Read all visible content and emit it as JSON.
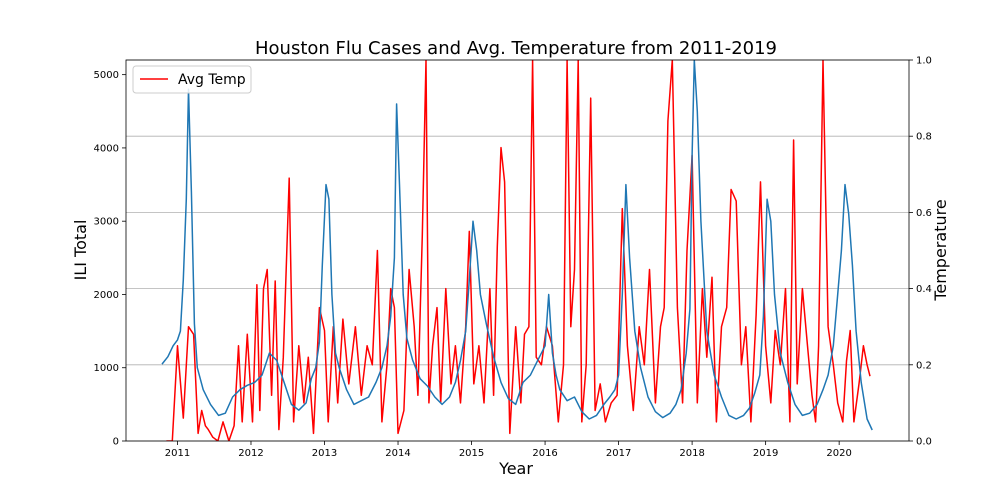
{
  "chart_data": {
    "type": "line",
    "title": "Houston Flu Cases and Avg. Temperature from 2011-2019",
    "xlabel": "Year",
    "ylabel": "ILI Total",
    "y2label": "Temperature",
    "xlim": [
      2010.3,
      2020.95
    ],
    "ylim": [
      0,
      5200
    ],
    "y2lim": [
      0,
      1.0
    ],
    "xticks": [
      "2011",
      "2012",
      "2013",
      "2014",
      "2015",
      "2016",
      "2017",
      "2018",
      "2019",
      "2020"
    ],
    "yticks": [
      "0",
      "1000",
      "2000",
      "3000",
      "4000",
      "5000"
    ],
    "y2ticks": [
      "0.0",
      "0.2",
      "0.4",
      "0.6",
      "0.8",
      "1.0"
    ],
    "grid": "horizontal on secondary axis",
    "legend": {
      "placement": "top-left",
      "entries": [
        "Avg Temp"
      ]
    },
    "series": [
      {
        "axis": "left",
        "color": "#1f77b4",
        "x": [
          2010.79,
          2010.87,
          2010.94,
          2011.0,
          2011.04,
          2011.08,
          2011.12,
          2011.15,
          2011.19,
          2011.23,
          2011.27,
          2011.35,
          2011.45,
          2011.56,
          2011.65,
          2011.75,
          2011.85,
          2011.95,
          2012.05,
          2012.15,
          2012.25,
          2012.35,
          2012.45,
          2012.55,
          2012.65,
          2012.75,
          2012.82,
          2012.88,
          2012.93,
          2012.97,
          2013.02,
          2013.06,
          2013.1,
          2013.15,
          2013.2,
          2013.3,
          2013.4,
          2013.5,
          2013.6,
          2013.7,
          2013.78,
          2013.85,
          2013.9,
          2013.95,
          2013.98,
          2014.02,
          2014.07,
          2014.12,
          2014.2,
          2014.3,
          2014.4,
          2014.5,
          2014.6,
          2014.7,
          2014.78,
          2014.85,
          2014.92,
          2014.97,
          2015.02,
          2015.07,
          2015.12,
          2015.2,
          2015.3,
          2015.4,
          2015.5,
          2015.6,
          2015.7,
          2015.8,
          2015.9,
          2016.0,
          2016.05,
          2016.1,
          2016.15,
          2016.2,
          2016.3,
          2016.4,
          2016.5,
          2016.6,
          2016.7,
          2016.8,
          2016.88,
          2016.95,
          2017.0,
          2017.05,
          2017.1,
          2017.15,
          2017.22,
          2017.3,
          2017.4,
          2017.5,
          2017.6,
          2017.7,
          2017.78,
          2017.85,
          2017.92,
          2017.97,
          2018.0,
          2018.03,
          2018.07,
          2018.12,
          2018.2,
          2018.3,
          2018.4,
          2018.5,
          2018.6,
          2018.7,
          2018.78,
          2018.85,
          2018.92,
          2018.97,
          2019.02,
          2019.07,
          2019.12,
          2019.2,
          2019.3,
          2019.4,
          2019.5,
          2019.6,
          2019.7,
          2019.78,
          2019.85,
          2019.92,
          2019.98,
          2020.03,
          2020.08,
          2020.13,
          2020.18,
          2020.23,
          2020.3,
          2020.38,
          2020.45
        ],
        "values": [
          1050,
          1150,
          1300,
          1380,
          1500,
          2200,
          3300,
          4800,
          3400,
          1600,
          1000,
          700,
          500,
          350,
          380,
          600,
          700,
          760,
          800,
          900,
          1200,
          1100,
          800,
          500,
          420,
          520,
          850,
          1000,
          1350,
          2400,
          3500,
          3300,
          2000,
          1200,
          1000,
          700,
          500,
          550,
          600,
          800,
          1000,
          1300,
          1700,
          2500,
          4600,
          3500,
          2000,
          1400,
          1100,
          850,
          750,
          600,
          500,
          600,
          800,
          1100,
          1500,
          2200,
          3000,
          2600,
          2000,
          1600,
          1150,
          800,
          580,
          500,
          800,
          900,
          1100,
          1300,
          2000,
          1200,
          900,
          700,
          550,
          600,
          400,
          300,
          350,
          500,
          600,
          700,
          900,
          2000,
          3500,
          2500,
          1500,
          1000,
          600,
          400,
          320,
          380,
          500,
          700,
          1200,
          1800,
          3900,
          5200,
          4500,
          3000,
          1500,
          900,
          600,
          350,
          300,
          350,
          450,
          650,
          900,
          1700,
          3300,
          3000,
          2000,
          1200,
          800,
          500,
          350,
          380,
          500,
          700,
          900,
          1300,
          2000,
          2600,
          3500,
          3100,
          2400,
          1500,
          800,
          300,
          150
        ]
      },
      {
        "name": "Avg Temp",
        "axis": "right",
        "color": "#ff0000",
        "x": [
          2010.85,
          2010.93,
          2011.0,
          2011.08,
          2011.15,
          2011.22,
          2011.28,
          2011.33,
          2011.38,
          2011.42,
          2011.48,
          2011.55,
          2011.62,
          2011.7,
          2011.77,
          2011.83,
          2011.88,
          2011.95,
          2012.02,
          2012.08,
          2012.12,
          2012.17,
          2012.22,
          2012.28,
          2012.33,
          2012.38,
          2012.44,
          2012.52,
          2012.58,
          2012.65,
          2012.72,
          2012.78,
          2012.85,
          2012.93,
          2013.0,
          2013.05,
          2013.12,
          2013.18,
          2013.25,
          2013.33,
          2013.42,
          2013.5,
          2013.58,
          2013.65,
          2013.72,
          2013.78,
          2013.85,
          2013.9,
          2013.95,
          2014.0,
          2014.08,
          2014.15,
          2014.22,
          2014.27,
          2014.33,
          2014.38,
          2014.42,
          2014.47,
          2014.53,
          2014.58,
          2014.65,
          2014.72,
          2014.78,
          2014.85,
          2014.92,
          2014.97,
          2015.03,
          2015.1,
          2015.17,
          2015.25,
          2015.3,
          2015.35,
          2015.4,
          2015.45,
          2015.52,
          2015.6,
          2015.67,
          2015.72,
          2015.78,
          2015.83,
          2015.88,
          2015.95,
          2016.02,
          2016.1,
          2016.18,
          2016.25,
          2016.3,
          2016.35,
          2016.4,
          2016.45,
          2016.5,
          2016.56,
          2016.62,
          2016.68,
          2016.75,
          2016.82,
          2016.9,
          2016.98,
          2017.05,
          2017.12,
          2017.2,
          2017.28,
          2017.35,
          2017.42,
          2017.5,
          2017.57,
          2017.62,
          2017.67,
          2017.73,
          2017.8,
          2017.87,
          2017.93,
          2018.0,
          2018.07,
          2018.14,
          2018.2,
          2018.27,
          2018.33,
          2018.4,
          2018.47,
          2018.53,
          2018.6,
          2018.67,
          2018.73,
          2018.8,
          2018.87,
          2018.93,
          2019.0,
          2019.07,
          2019.13,
          2019.2,
          2019.27,
          2019.33,
          2019.38,
          2019.43,
          2019.5,
          2019.57,
          2019.63,
          2019.68,
          2019.72,
          2019.78,
          2019.85,
          2019.92,
          2019.98,
          2020.05,
          2020.1,
          2020.15,
          2020.2,
          2020.27,
          2020.33,
          2020.38,
          2020.42
        ],
        "values": [
          0.0,
          0.0,
          0.25,
          0.06,
          0.3,
          0.28,
          0.02,
          0.08,
          0.04,
          0.03,
          0.01,
          0.0,
          0.05,
          0.0,
          0.04,
          0.25,
          0.05,
          0.28,
          0.05,
          0.41,
          0.08,
          0.4,
          0.45,
          0.12,
          0.42,
          0.03,
          0.22,
          0.69,
          0.05,
          0.25,
          0.1,
          0.22,
          0.02,
          0.35,
          0.29,
          0.05,
          0.3,
          0.1,
          0.32,
          0.15,
          0.3,
          0.12,
          0.25,
          0.2,
          0.5,
          0.05,
          0.2,
          0.4,
          0.35,
          0.02,
          0.08,
          0.45,
          0.3,
          0.12,
          0.54,
          1.0,
          0.1,
          0.25,
          0.35,
          0.1,
          0.4,
          0.15,
          0.25,
          0.1,
          0.3,
          0.55,
          0.15,
          0.25,
          0.1,
          0.4,
          0.12,
          0.51,
          0.77,
          0.68,
          0.02,
          0.3,
          0.1,
          0.28,
          0.3,
          1.0,
          0.22,
          0.2,
          0.3,
          0.25,
          0.05,
          0.2,
          1.0,
          0.3,
          0.45,
          1.0,
          0.05,
          0.2,
          0.9,
          0.08,
          0.15,
          0.05,
          0.1,
          0.12,
          0.61,
          0.25,
          0.08,
          0.3,
          0.2,
          0.45,
          0.1,
          0.3,
          0.35,
          0.84,
          1.0,
          0.35,
          0.1,
          0.5,
          0.75,
          0.1,
          0.4,
          0.22,
          0.43,
          0.05,
          0.3,
          0.35,
          0.66,
          0.63,
          0.2,
          0.3,
          0.05,
          0.33,
          0.68,
          0.25,
          0.1,
          0.29,
          0.2,
          0.4,
          0.05,
          0.79,
          0.15,
          0.4,
          0.25,
          0.12,
          0.05,
          0.25,
          1.0,
          0.3,
          0.2,
          0.1,
          0.05,
          0.21,
          0.29,
          0.05,
          0.15,
          0.25,
          0.2,
          0.17
        ]
      }
    ]
  }
}
